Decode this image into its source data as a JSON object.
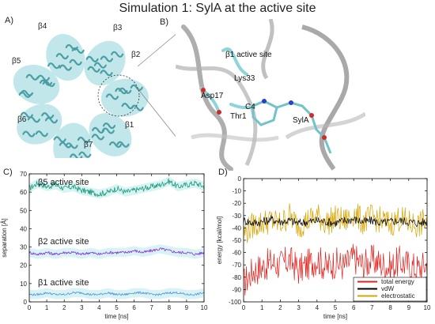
{
  "figure_title": "Simulation 1: SylA at the active site",
  "panels": {
    "A": {
      "label": "A)",
      "subunit_labels": [
        "β4",
        "β3",
        "β5",
        "β2",
        "β6",
        "β1",
        "β7"
      ]
    },
    "B": {
      "label": "B)",
      "labels": [
        "β1 active site",
        "Lys33",
        "Asp17",
        "C4",
        "Thr1",
        "SylA"
      ]
    },
    "C": {
      "label": "C)"
    },
    "D": {
      "label": "D)"
    }
  },
  "colors": {
    "protein": "#8ed4d8",
    "protein_dark": "#4a9ea4",
    "ribbon": "#8a8a8a",
    "beta5": "#1e9a7a",
    "beta2": "#8a2be2",
    "beta1": "#5b8fe0",
    "band_light": "#c8eef0",
    "total_energy": "#e0221e",
    "vdW": "#000000",
    "electrostatic": "#d9a400"
  },
  "chart_data": [
    {
      "type": "line",
      "xlabel": "time [ns]",
      "ylabel": "separation [Å]",
      "xlim": [
        0,
        10
      ],
      "ylim": [
        0,
        70
      ],
      "xticks": [
        0,
        1,
        2,
        3,
        4,
        5,
        6,
        7,
        8,
        9,
        10
      ],
      "yticks": [
        0,
        10,
        20,
        30,
        40,
        50,
        60,
        70
      ],
      "grid": false,
      "annotations": [
        "β5 active site",
        "β2 active site",
        "β1 active site"
      ],
      "series": [
        {
          "name": "β5 active site",
          "x": [
            0,
            0.5,
            1,
            1.5,
            2,
            2.5,
            3,
            3.5,
            4,
            4.5,
            5,
            5.5,
            6,
            6.5,
            7,
            7.5,
            8,
            8.5,
            9,
            9.5,
            10
          ],
          "values": [
            62,
            65,
            63,
            64,
            62,
            63,
            61,
            60,
            59,
            60,
            62,
            60,
            61,
            62,
            63,
            64,
            66,
            63,
            64,
            65,
            63
          ]
        },
        {
          "name": "β2 active site",
          "x": [
            0,
            0.5,
            1,
            1.5,
            2,
            2.5,
            3,
            3.5,
            4,
            4.5,
            5,
            5.5,
            6,
            6.5,
            7,
            7.5,
            8,
            8.5,
            9,
            9.5,
            10
          ],
          "values": [
            27,
            26,
            27,
            26,
            27,
            27,
            26,
            27,
            26,
            27,
            27,
            27,
            28,
            27,
            28,
            29,
            28,
            27,
            27,
            26,
            27
          ]
        },
        {
          "name": "β1 active site",
          "x": [
            0,
            0.5,
            1,
            1.5,
            2,
            2.5,
            3,
            3.5,
            4,
            4.5,
            5,
            5.5,
            6,
            6.5,
            7,
            7.5,
            8,
            8.5,
            9,
            9.5,
            10
          ],
          "values": [
            4,
            4,
            5,
            4,
            4,
            5,
            5,
            4,
            4,
            5,
            4,
            4,
            5,
            5,
            4,
            4,
            5,
            5,
            4,
            4,
            5
          ]
        }
      ]
    },
    {
      "type": "line",
      "xlabel": "time [ns]",
      "ylabel": "energy [kcal/mol]",
      "xlim": [
        0,
        10
      ],
      "ylim": [
        -100,
        0
      ],
      "xticks": [
        0,
        1,
        2,
        3,
        4,
        5,
        6,
        7,
        8,
        9,
        10
      ],
      "yticks": [
        0,
        -10,
        -20,
        -30,
        -40,
        -50,
        -60,
        -70,
        -80,
        -90,
        -100
      ],
      "grid": false,
      "legend": "bottom-right",
      "series": [
        {
          "name": "total energy",
          "x": [
            0,
            0.5,
            1,
            1.5,
            2,
            2.5,
            3,
            3.5,
            4,
            4.5,
            5,
            5.5,
            6,
            6.5,
            7,
            7.5,
            8,
            8.5,
            9,
            9.5,
            10
          ],
          "values": [
            -85,
            -75,
            -72,
            -68,
            -70,
            -66,
            -74,
            -70,
            -65,
            -72,
            -68,
            -71,
            -64,
            -70,
            -66,
            -69,
            -72,
            -67,
            -70,
            -73,
            -69
          ]
        },
        {
          "name": "vdW",
          "x": [
            0,
            0.5,
            1,
            1.5,
            2,
            2.5,
            3,
            3.5,
            4,
            4.5,
            5,
            5.5,
            6,
            6.5,
            7,
            7.5,
            8,
            8.5,
            9,
            9.5,
            10
          ],
          "values": [
            -34,
            -36,
            -35,
            -33,
            -35,
            -34,
            -36,
            -35,
            -34,
            -35,
            -36,
            -34,
            -33,
            -35,
            -34,
            -36,
            -35,
            -34,
            -35,
            -36,
            -35
          ]
        },
        {
          "name": "electrostatic",
          "x": [
            0,
            0.5,
            1,
            1.5,
            2,
            2.5,
            3,
            3.5,
            4,
            4.5,
            5,
            5.5,
            6,
            6.5,
            7,
            7.5,
            8,
            8.5,
            9,
            9.5,
            10
          ],
          "values": [
            -45,
            -38,
            -36,
            -34,
            -37,
            -30,
            -38,
            -34,
            -30,
            -36,
            -32,
            -35,
            -28,
            -35,
            -31,
            -34,
            -37,
            -32,
            -36,
            -38,
            -34
          ]
        }
      ]
    }
  ]
}
